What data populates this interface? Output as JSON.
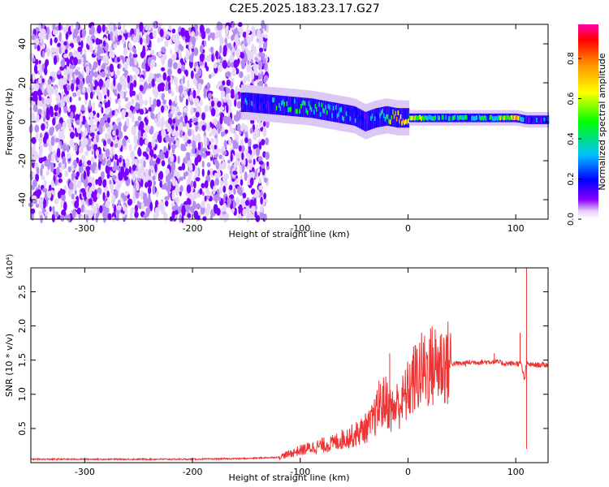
{
  "title": "C2E5.2025.183.23.17.G27",
  "chart_data": [
    {
      "type": "heatmap",
      "xlabel": "Height of straight line (km)",
      "ylabel": "Frequency (Hz)",
      "xlim": [
        -350,
        130
      ],
      "ylim": [
        -50,
        50
      ],
      "x_ticks": [
        -300,
        -200,
        -100,
        0,
        100
      ],
      "y_ticks": [
        -40,
        -20,
        0,
        20,
        40
      ],
      "x_tick_labels": [
        "-300",
        "-200",
        "-100",
        "0",
        "100"
      ],
      "y_tick_labels": [
        "-40",
        "-20",
        "0",
        "20",
        "40"
      ],
      "colorbar": {
        "label": "Normalized spectral amplitude",
        "range": [
          0,
          0.97
        ],
        "ticks": [
          0.0,
          0.2,
          0.4,
          0.6,
          0.8
        ],
        "tick_labels": [
          "0.0",
          "0.2",
          "0.4",
          "0.6",
          "0.8"
        ],
        "colormap": [
          "#ffffff",
          "#e9d5f7",
          "#7a00ff",
          "#0000ff",
          "#00bfff",
          "#00ff00",
          "#ffff00",
          "#ff8c00",
          "#ff0000",
          "#ff00ff"
        ]
      },
      "ridge": {
        "x": [
          -350,
          -150,
          -130,
          -110,
          -90,
          -70,
          -50,
          -40,
          -30,
          -20,
          -10,
          0,
          20,
          40,
          60,
          80,
          100,
          110,
          130
        ],
        "frequency": [
          null,
          10,
          9,
          8,
          7,
          5,
          3,
          0,
          2,
          3,
          2,
          2,
          2,
          2,
          2,
          2,
          2,
          1,
          1
        ],
        "amplitude": [
          0.25,
          0.35,
          0.45,
          0.5,
          0.55,
          0.5,
          0.45,
          0.35,
          0.45,
          0.6,
          0.85,
          0.7,
          0.5,
          0.5,
          0.5,
          0.55,
          0.75,
          0.3,
          0.45
        ]
      },
      "noise_region_x": [
        -350,
        -130
      ]
    },
    {
      "type": "line",
      "xlabel": "Height of straight line (km)",
      "ylabel": "SNR (10 * v/v)",
      "scale_label": "(x10⁴)",
      "xlim": [
        -350,
        130
      ],
      "ylim": [
        0,
        2.85
      ],
      "x_ticks": [
        -300,
        -200,
        -100,
        0,
        100
      ],
      "y_ticks": [
        0.5,
        1.0,
        1.5,
        2.0,
        2.5
      ],
      "x_tick_labels": [
        "-300",
        "-200",
        "-100",
        "0",
        "100"
      ],
      "y_tick_labels": [
        "0.5",
        "1.0",
        "1.5",
        "2.0",
        "2.5"
      ],
      "series": [
        {
          "color": "#ee3333",
          "x": [
            -350,
            -300,
            -200,
            -150,
            -120,
            -100,
            -90,
            -80,
            -70,
            -60,
            -50,
            -40,
            -35,
            -30,
            -25,
            -20,
            -15,
            -10,
            -5,
            0,
            5,
            10,
            20,
            30,
            40,
            50,
            60,
            70,
            80,
            90,
            100,
            105,
            108,
            110,
            115,
            120,
            130
          ],
          "y": [
            0.05,
            0.05,
            0.05,
            0.06,
            0.08,
            0.18,
            0.22,
            0.25,
            0.28,
            0.35,
            0.4,
            0.5,
            0.55,
            0.7,
            0.85,
            0.9,
            0.75,
            0.85,
            0.9,
            1.05,
            1.2,
            1.3,
            1.4,
            1.45,
            1.45,
            1.45,
            1.47,
            1.47,
            1.48,
            1.45,
            1.45,
            1.45,
            1.2,
            1.45,
            1.43,
            1.43,
            1.43
          ],
          "spikes": [
            {
              "x": -17,
              "y": 1.6
            },
            {
              "x": -27,
              "y": 1.2
            },
            {
              "x": 80,
              "y": 1.6
            },
            {
              "x": 104,
              "y": 1.9
            },
            {
              "x": 110,
              "y": 2.85
            },
            {
              "x": 110,
              "y": 0.2
            }
          ]
        }
      ]
    }
  ]
}
